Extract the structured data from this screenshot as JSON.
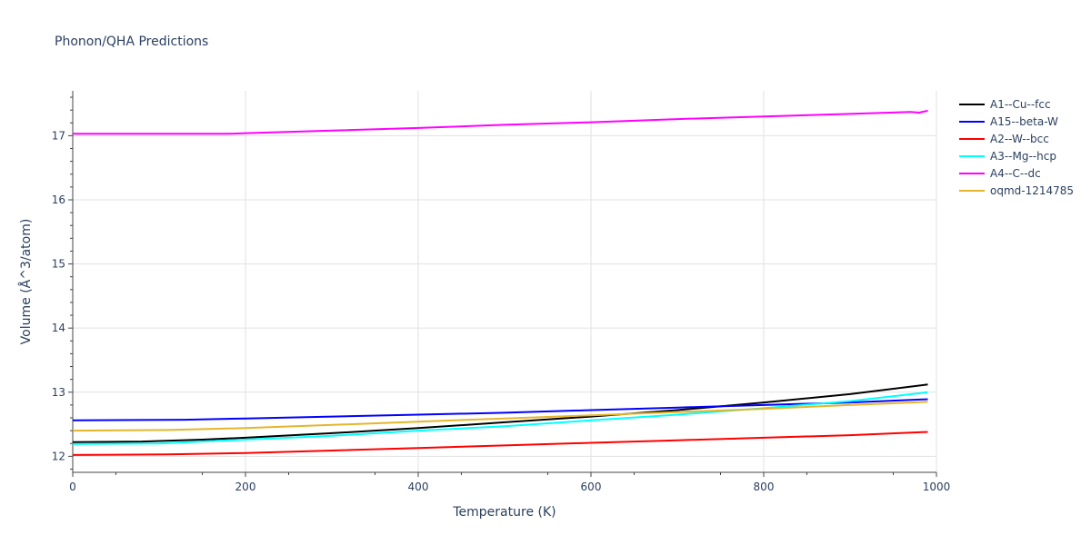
{
  "chart_data": {
    "type": "line",
    "title": "Phonon/QHA Predictions",
    "xlabel": "Temperature (K)",
    "ylabel": "Volume (Å^3/atom)",
    "xlim": [
      0,
      1000
    ],
    "ylim": [
      11.75,
      17.7
    ],
    "xticks": [
      0,
      200,
      400,
      600,
      800,
      1000
    ],
    "yticks": [
      12,
      13,
      14,
      15,
      16,
      17
    ],
    "grid": true,
    "legend_position": "top-right",
    "series": [
      {
        "name": "A1--Cu--fcc",
        "color": "#000000",
        "x": [
          0,
          80,
          150,
          200,
          300,
          400,
          500,
          600,
          700,
          800,
          900,
          990
        ],
        "y": [
          12.22,
          12.23,
          12.26,
          12.29,
          12.36,
          12.44,
          12.53,
          12.62,
          12.72,
          12.84,
          12.97,
          13.12
        ]
      },
      {
        "name": "A15--beta-W",
        "color": "#0000ff",
        "x": [
          0,
          130,
          200,
          300,
          400,
          500,
          600,
          700,
          800,
          900,
          990
        ],
        "y": [
          12.56,
          12.57,
          12.59,
          12.62,
          12.65,
          12.68,
          12.72,
          12.76,
          12.8,
          12.84,
          12.89
        ]
      },
      {
        "name": "A2--W--bcc",
        "color": "#ff0000",
        "x": [
          0,
          110,
          200,
          300,
          400,
          500,
          600,
          700,
          800,
          900,
          990
        ],
        "y": [
          12.02,
          12.03,
          12.05,
          12.09,
          12.13,
          12.17,
          12.21,
          12.25,
          12.29,
          12.33,
          12.38
        ]
      },
      {
        "name": "A3--Mg--hcp",
        "color": "#00ffff",
        "x": [
          0,
          100,
          200,
          300,
          400,
          500,
          600,
          700,
          800,
          900,
          990
        ],
        "y": [
          12.19,
          12.2,
          12.26,
          12.32,
          12.4,
          12.47,
          12.56,
          12.65,
          12.75,
          12.86,
          13.0
        ]
      },
      {
        "name": "A4--C--dc",
        "color": "#ff00ff",
        "x": [
          0,
          100,
          180,
          200,
          300,
          400,
          500,
          600,
          700,
          800,
          900,
          970,
          980,
          990
        ],
        "y": [
          17.03,
          17.03,
          17.03,
          17.04,
          17.08,
          17.12,
          17.17,
          17.21,
          17.26,
          17.3,
          17.34,
          17.37,
          17.36,
          17.39
        ]
      },
      {
        "name": "oqmd-1214785",
        "color": "#e5b52b",
        "x": [
          0,
          110,
          200,
          300,
          400,
          500,
          600,
          700,
          800,
          900,
          990
        ],
        "y": [
          12.4,
          12.41,
          12.44,
          12.49,
          12.54,
          12.59,
          12.64,
          12.69,
          12.74,
          12.8,
          12.85
        ]
      }
    ]
  }
}
